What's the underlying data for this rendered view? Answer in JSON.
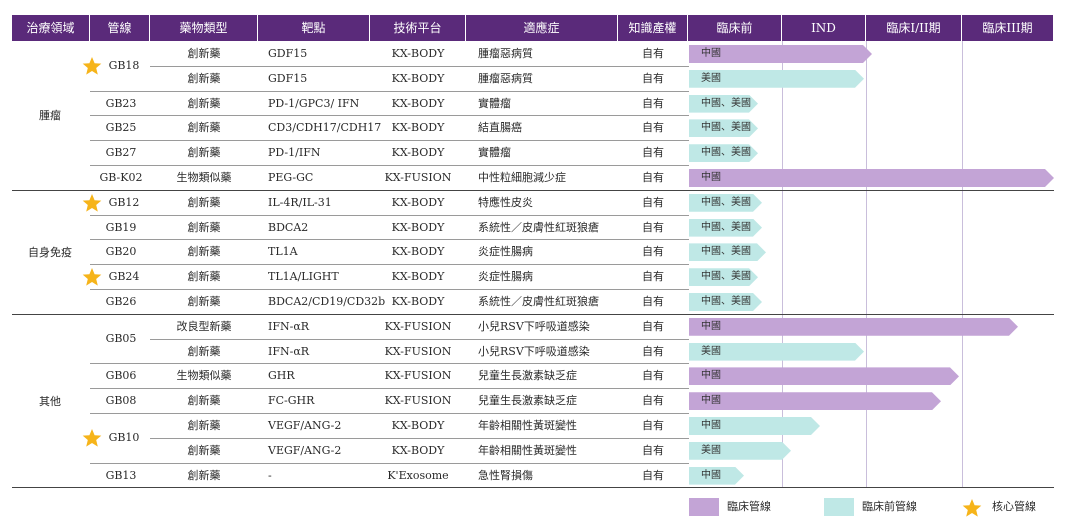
{
  "colors": {
    "header_bg": "#5a2a7a",
    "header_text": "#ffffff",
    "clinical": "#c3a4d6",
    "preclinical": "#bfe8e6",
    "star": "#f6b41a"
  },
  "headers": [
    "治療領域",
    "管線",
    "藥物類型",
    "靶點",
    "技術平台",
    "適應症",
    "知識產權",
    "臨床前",
    "IND",
    "臨床I/II期",
    "臨床III期"
  ],
  "rows": [
    {
      "area": "腫瘤",
      "pipeline": "GB18",
      "star": true,
      "drug_type": "創新藥",
      "target": "GDF15",
      "platform": "KX-BODY",
      "indication": "腫瘤惡病質",
      "ip": "自有",
      "region": "中國",
      "stage": "clinical",
      "progress": 0.5
    },
    {
      "area": "腫瘤",
      "pipeline": "",
      "star": false,
      "drug_type": "創新藥",
      "target": "GDF15",
      "platform": "KX-BODY",
      "indication": "腫瘤惡病質",
      "ip": "自有",
      "region": "美國",
      "stage": "preclinical",
      "progress": 0.48
    },
    {
      "area": "腫瘤",
      "pipeline": "GB23",
      "star": false,
      "drug_type": "創新藥",
      "target": "PD-1/GPC3/ IFN",
      "platform": "KX-BODY",
      "indication": "實體瘤",
      "ip": "自有",
      "region": "中國、美國",
      "stage": "preclinical",
      "progress": 0.19
    },
    {
      "area": "腫瘤",
      "pipeline": "GB25",
      "star": false,
      "drug_type": "創新藥",
      "target": "CD3/CDH17/CDH17",
      "platform": "KX-BODY",
      "indication": "結直腸癌",
      "ip": "自有",
      "region": "中國、美國",
      "stage": "preclinical",
      "progress": 0.19
    },
    {
      "area": "腫瘤",
      "pipeline": "GB27",
      "star": false,
      "drug_type": "創新藥",
      "target": "PD-1/IFN",
      "platform": "KX-BODY",
      "indication": "實體瘤",
      "ip": "自有",
      "region": "中國、美國",
      "stage": "preclinical",
      "progress": 0.19
    },
    {
      "area": "腫瘤",
      "pipeline": "GB-K02",
      "star": false,
      "drug_type": "生物類似藥",
      "target": "PEG-GC",
      "platform": "KX-FUSION",
      "indication": "中性粒細胞減少症",
      "ip": "自有",
      "region": "中國",
      "stage": "clinical",
      "progress": 1.0
    },
    {
      "area": "自身免疫",
      "pipeline": "GB12",
      "star": true,
      "drug_type": "創新藥",
      "target": "IL-4R/IL-31",
      "platform": "KX-BODY",
      "indication": "特應性皮炎",
      "ip": "自有",
      "region": "中國、美國",
      "stage": "preclinical",
      "progress": 0.2
    },
    {
      "area": "自身免疫",
      "pipeline": "GB19",
      "star": false,
      "drug_type": "創新藥",
      "target": "BDCA2",
      "platform": "KX-BODY",
      "indication": "系統性／皮膚性紅斑狼瘡",
      "ip": "自有",
      "region": "中國、美國",
      "stage": "preclinical",
      "progress": 0.2
    },
    {
      "area": "自身免疫",
      "pipeline": "GB20",
      "star": false,
      "drug_type": "創新藥",
      "target": "TL1A",
      "platform": "KX-BODY",
      "indication": "炎症性腸病",
      "ip": "自有",
      "region": "中國、美國",
      "stage": "preclinical",
      "progress": 0.21
    },
    {
      "area": "自身免疫",
      "pipeline": "GB24",
      "star": true,
      "drug_type": "創新藥",
      "target": "TL1A/LIGHT",
      "platform": "KX-BODY",
      "indication": "炎症性腸病",
      "ip": "自有",
      "region": "中國、美國",
      "stage": "preclinical",
      "progress": 0.19
    },
    {
      "area": "自身免疫",
      "pipeline": "GB26",
      "star": false,
      "drug_type": "創新藥",
      "target": "BDCA2/CD19/CD32b",
      "platform": "KX-BODY",
      "indication": "系統性／皮膚性紅斑狼瘡",
      "ip": "自有",
      "region": "中國、美國",
      "stage": "preclinical",
      "progress": 0.2
    },
    {
      "area": "其他",
      "pipeline": "GB05",
      "star": false,
      "drug_type": "改良型新藥",
      "target": "IFN-αR",
      "platform": "KX-FUSION",
      "indication": "小兒RSV下呼吸道感染",
      "ip": "自有",
      "region": "中國",
      "stage": "clinical",
      "progress": 0.9
    },
    {
      "area": "其他",
      "pipeline": "",
      "star": false,
      "drug_type": "創新藥",
      "target": "IFN-αR",
      "platform": "KX-FUSION",
      "indication": "小兒RSV下呼吸道感染",
      "ip": "自有",
      "region": "美國",
      "stage": "preclinical",
      "progress": 0.48
    },
    {
      "area": "其他",
      "pipeline": "GB06",
      "star": false,
      "drug_type": "生物類似藥",
      "target": "GHR",
      "platform": "KX-FUSION",
      "indication": "兒童生長激素缺乏症",
      "ip": "自有",
      "region": "中國",
      "stage": "clinical",
      "progress": 0.74
    },
    {
      "area": "其他",
      "pipeline": "GB08",
      "star": false,
      "drug_type": "創新藥",
      "target": "FC-GHR",
      "platform": "KX-FUSION",
      "indication": "兒童生長激素缺乏症",
      "ip": "自有",
      "region": "中國",
      "stage": "clinical",
      "progress": 0.69
    },
    {
      "area": "其他",
      "pipeline": "GB10",
      "star": true,
      "drug_type": "創新藥",
      "target": "VEGF/ANG-2",
      "platform": "KX-BODY",
      "indication": "年齡相關性黃斑變性",
      "ip": "自有",
      "region": "中國",
      "stage": "preclinical",
      "progress": 0.36
    },
    {
      "area": "其他",
      "pipeline": "",
      "star": false,
      "drug_type": "創新藥",
      "target": "VEGF/ANG-2",
      "platform": "KX-BODY",
      "indication": "年齡相關性黃斑變性",
      "ip": "自有",
      "region": "美國",
      "stage": "preclinical",
      "progress": 0.28
    },
    {
      "area": "其他",
      "pipeline": "GB13",
      "star": false,
      "drug_type": "創新藥",
      "target": "-",
      "platform": "K'Exosome",
      "indication": "急性腎損傷",
      "ip": "自有",
      "region": "中國",
      "stage": "preclinical",
      "progress": 0.15
    }
  ],
  "areas": [
    {
      "label": "腫瘤",
      "first": 0,
      "count": 6
    },
    {
      "label": "自身免疫",
      "first": 6,
      "count": 5
    },
    {
      "label": "其他",
      "first": 11,
      "count": 7
    }
  ],
  "legend": {
    "clinical": "臨床管線",
    "preclinical": "臨床前管線",
    "core": "核心管線"
  }
}
